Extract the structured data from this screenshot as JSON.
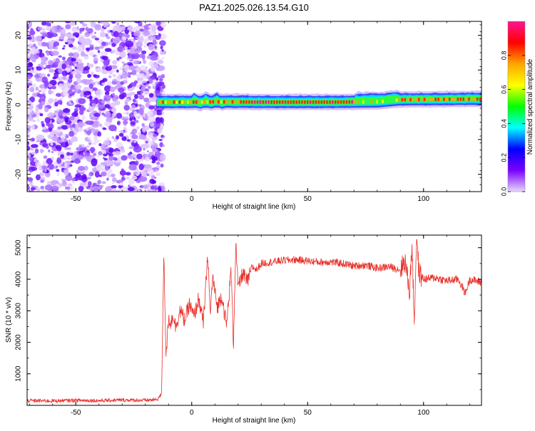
{
  "title": "PAZ1.2025.026.13.54.G10",
  "chart_data": [
    {
      "type": "heatmap",
      "title": "PAZ1.2025.026.13.54.G10",
      "xlabel": "Height of straight line (km)",
      "ylabel": "Frequency (Hz)",
      "xlim": [
        -71,
        125
      ],
      "ylim": [
        -25,
        24
      ],
      "xticks": [
        -50,
        0,
        50,
        100
      ],
      "xtick_labels": [
        "-50",
        "0",
        "50",
        "100"
      ],
      "yticks": [
        -20,
        -10,
        0,
        10,
        20
      ],
      "ytick_labels": [
        "-20",
        "-10",
        "0",
        "10",
        "20"
      ],
      "noise_region_x": [
        -71,
        -15
      ],
      "signal_ridge": [
        {
          "x": -15,
          "f": 0.8
        },
        {
          "x": 0,
          "f": 0.8
        },
        {
          "x": 10,
          "f": 0.9
        },
        {
          "x": 30,
          "f": 0.8
        },
        {
          "x": 60,
          "f": 0.8
        },
        {
          "x": 80,
          "f": 0.9
        },
        {
          "x": 90,
          "f": 1.5
        },
        {
          "x": 125,
          "f": 1.7
        }
      ],
      "colorbar": {
        "label": "Normalized spectral amplitude",
        "range": [
          0.0,
          1.0
        ],
        "ticks": [
          0.0,
          0.2,
          0.4,
          0.6,
          0.8
        ],
        "tick_labels": [
          "0.0",
          "0.2",
          "0.4",
          "0.6",
          "0.8"
        ],
        "colors": [
          "#e9d8ff",
          "#7b00ff",
          "#0000ff",
          "#00ffff",
          "#00ff00",
          "#ffff00",
          "#ffa500",
          "#ff0000",
          "#ff1493"
        ]
      }
    },
    {
      "type": "line",
      "xlabel": "Height of straight line (km)",
      "ylabel": "SNR (10 * v/v)",
      "xlim": [
        -71,
        125
      ],
      "ylim": [
        0,
        5400
      ],
      "xticks": [
        -50,
        0,
        50,
        100
      ],
      "xtick_labels": [
        "-50",
        "0",
        "50",
        "100"
      ],
      "yticks": [
        1000,
        2000,
        3000,
        4000,
        5000
      ],
      "ytick_labels": [
        "1000",
        "2000",
        "3000",
        "4000",
        "5000"
      ],
      "line_color": "#e8312a",
      "series": [
        {
          "name": "SNR",
          "x": [
            -71,
            -60,
            -50,
            -40,
            -30,
            -20,
            -15,
            -13,
            -12,
            -11.5,
            -11,
            -10,
            -9,
            -8,
            -7,
            -5,
            -3,
            -1,
            1,
            3,
            5,
            7,
            8,
            9,
            11,
            13,
            15,
            17,
            18,
            19,
            20,
            22,
            24,
            26,
            28,
            30,
            35,
            40,
            45,
            50,
            55,
            60,
            65,
            70,
            75,
            80,
            85,
            90,
            92,
            94,
            95,
            96,
            97,
            98,
            100,
            105,
            110,
            115,
            118,
            120,
            125
          ],
          "values": [
            150,
            140,
            160,
            150,
            170,
            160,
            180,
            350,
            4900,
            3000,
            1500,
            2800,
            2600,
            2900,
            2500,
            3000,
            2700,
            3200,
            2800,
            3400,
            2600,
            4800,
            2800,
            4100,
            3100,
            3500,
            2500,
            4300,
            1900,
            5200,
            3700,
            4200,
            3900,
            4400,
            4300,
            4500,
            4550,
            4600,
            4620,
            4580,
            4540,
            4550,
            4500,
            4420,
            4450,
            4350,
            4400,
            4300,
            4600,
            3600,
            5200,
            2600,
            5400,
            4200,
            4000,
            4050,
            3950,
            4000,
            3550,
            4000,
            3900
          ]
        }
      ]
    }
  ]
}
